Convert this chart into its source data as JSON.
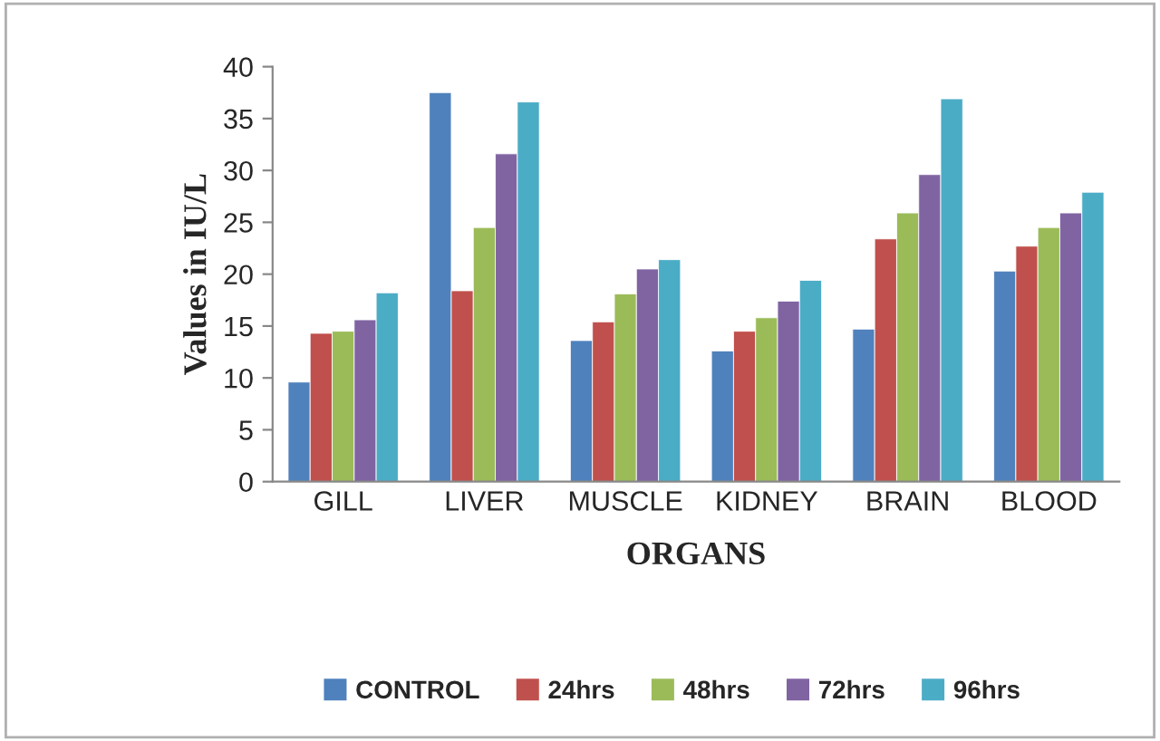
{
  "chart_data": {
    "type": "bar",
    "xlabel": "ORGANS",
    "ylabel": "Values in IU/L",
    "categories": [
      "GILL",
      "LIVER",
      "MUSCLE",
      "KIDNEY",
      "BRAIN",
      "BLOOD"
    ],
    "series": [
      {
        "name": "CONTROL",
        "color": "#4f81bd",
        "values": [
          9.6,
          37.5,
          13.6,
          12.6,
          14.7,
          20.3
        ]
      },
      {
        "name": "24hrs",
        "color": "#c0504d",
        "values": [
          14.3,
          18.4,
          15.4,
          14.5,
          23.4,
          22.7
        ]
      },
      {
        "name": "48hrs",
        "color": "#9bbb59",
        "values": [
          14.5,
          24.5,
          18.1,
          15.8,
          25.9,
          24.5
        ]
      },
      {
        "name": "72hrs",
        "color": "#8064a2",
        "values": [
          15.6,
          31.6,
          20.5,
          17.4,
          29.6,
          25.9
        ]
      },
      {
        "name": "96hrs",
        "color": "#4bacc6",
        "values": [
          18.2,
          36.6,
          21.4,
          19.4,
          36.9,
          27.9
        ]
      }
    ],
    "ylim": [
      0,
      40
    ],
    "yticks": [
      0,
      5,
      10,
      15,
      20,
      25,
      30,
      35,
      40
    ],
    "grid": false,
    "legend": "bottom"
  }
}
